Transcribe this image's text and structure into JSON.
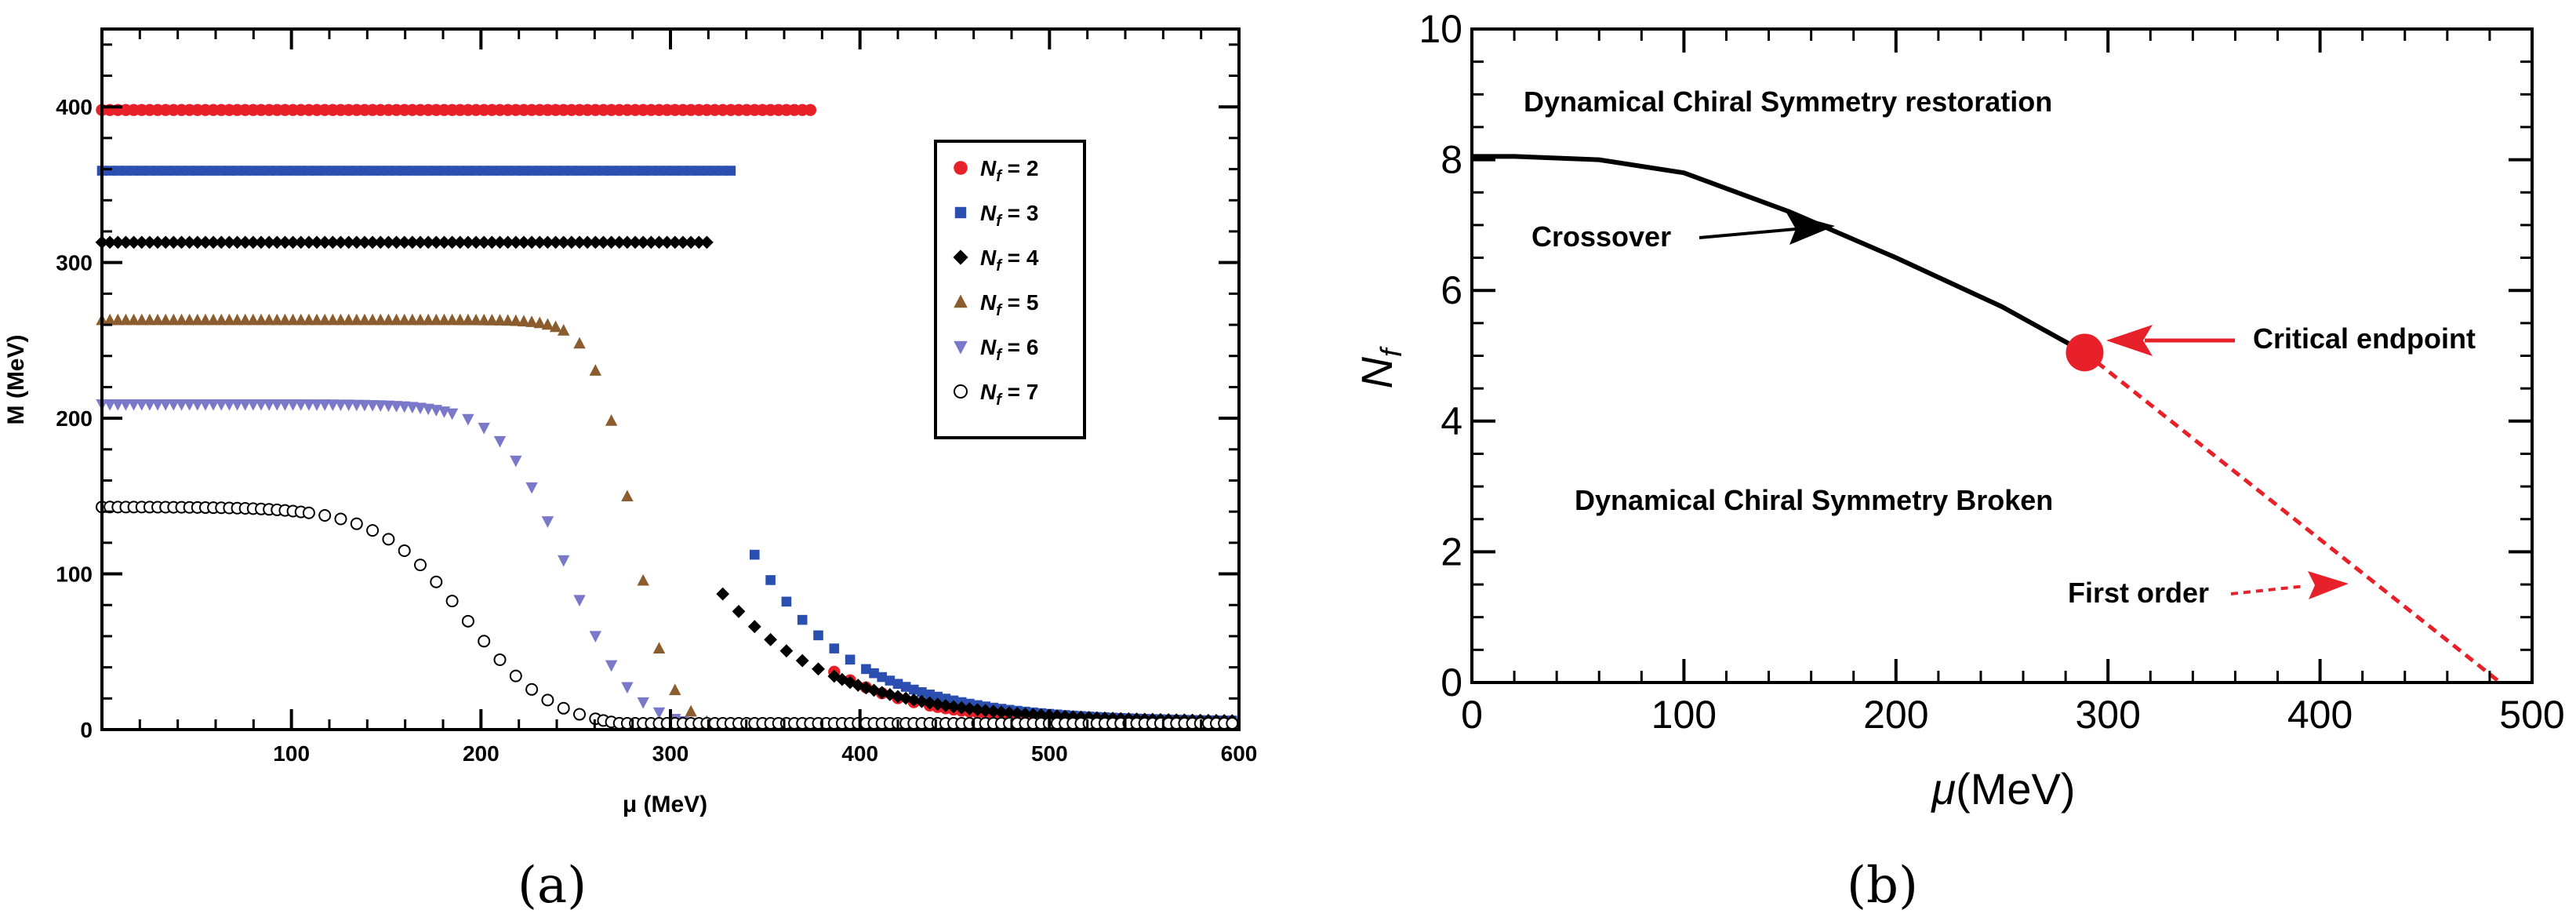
{
  "chart_data": [
    {
      "panel": "(a)",
      "type": "scatter",
      "xlabel": "μ (MeV)",
      "ylabel": "M (MeV)",
      "xlim": [
        0,
        600
      ],
      "ylim": [
        0,
        450
      ],
      "xticks": [
        100,
        200,
        300,
        400,
        500,
        600
      ],
      "yticks": [
        0,
        100,
        200,
        300,
        400
      ],
      "legend_position": "top-right",
      "series": [
        {
          "name": "N_f = 2",
          "label_main": "N",
          "label_sub": "f",
          "label_tail": " = 2",
          "marker": "circle",
          "color": "#e8202a",
          "plateau": 398,
          "mu_c": 375,
          "end_value": 42,
          "tail_a": 380,
          "tail_b": 5
        },
        {
          "name": "N_f = 3",
          "label_main": "N",
          "label_sub": "f",
          "label_tail": " = 3",
          "marker": "square",
          "color": "#2b4fb0",
          "plateau": 359,
          "mu_c": 335,
          "end_value": 122,
          "tail_a": 340,
          "tail_b": 5
        },
        {
          "name": "N_f = 4",
          "label_main": "N",
          "label_sub": "f",
          "label_tail": " = 4",
          "marker": "diamond",
          "color": "#000000",
          "plateau": 313,
          "mu_c": 322,
          "end_value": 88,
          "tail_a": 326,
          "tail_b": 5
        },
        {
          "name": "N_f = 5",
          "label_main": "N",
          "label_sub": "f",
          "label_tail": " = 5",
          "marker": "triangle-up",
          "color": "#8a5c2e",
          "plateau": 263,
          "mu_c": 280,
          "w": 10,
          "end_value": 0,
          "tail_a": 0,
          "tail_b": 4
        },
        {
          "name": "N_f = 6",
          "label_main": "N",
          "label_sub": "f",
          "label_tail": " = 6",
          "marker": "triangle-down",
          "color": "#7a78c8",
          "plateau": 209,
          "mu_c": 245,
          "w": 17,
          "end_value": 0,
          "tail_a": 0,
          "tail_b": 4
        },
        {
          "name": "N_f = 7",
          "label_main": "N",
          "label_sub": "f",
          "label_tail": " = 7",
          "marker": "circle-open",
          "color": "#000000",
          "plateau": 143,
          "mu_c": 192,
          "w": 23,
          "end_value": 0,
          "tail_a": 0,
          "tail_b": 4
        }
      ]
    },
    {
      "panel": "(b)",
      "type": "line",
      "xlabel_main": "μ",
      "xlabel_unit": "(MeV)",
      "ylabel_main": "N",
      "ylabel_sub": "f",
      "xlim": [
        0,
        500
      ],
      "ylim": [
        0,
        10
      ],
      "xticks": [
        0,
        100,
        200,
        300,
        400,
        500
      ],
      "yticks": [
        0,
        2,
        4,
        6,
        8,
        10
      ],
      "crossover_line": {
        "x": [
          0,
          20,
          60,
          100,
          150,
          200,
          250,
          289
        ],
        "y": [
          8.05,
          8.05,
          8.0,
          7.8,
          7.2,
          6.5,
          5.75,
          5.05
        ]
      },
      "first_order_line": {
        "x": [
          289,
          485
        ],
        "y": [
          5.05,
          0.0
        ]
      },
      "critical_endpoint": {
        "x": 289,
        "y": 5.05
      },
      "annotations": {
        "restoration": "Dynamical Chiral Symmetry restoration",
        "broken": "Dynamical Chiral Symmetry Broken",
        "crossover": "Crossover",
        "critical_endpoint": "Critical endpoint",
        "first_order": "First order"
      }
    }
  ],
  "colors": {
    "red": "#e8202a",
    "black": "#000000"
  }
}
